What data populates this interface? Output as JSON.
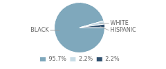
{
  "chart_data": {
    "type": "pie",
    "categories": [
      "95.7%",
      "2.2%",
      "2.2%"
    ],
    "values": [
      95.7,
      2.2,
      2.2
    ],
    "colors": [
      "#7fa8bc",
      "#c8dce6",
      "#2e4f6e"
    ],
    "annotations": [
      "BLACK",
      "WHITE",
      "HISPANIC"
    ],
    "legend": "bottom"
  }
}
